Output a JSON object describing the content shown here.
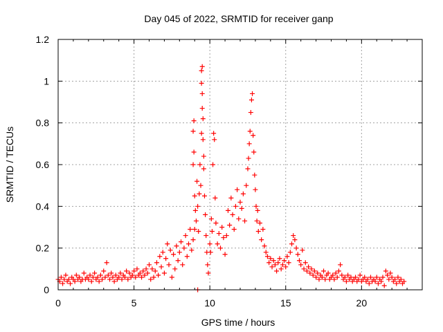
{
  "chart_data": {
    "type": "scatter",
    "title": "Day 045 of 2022, SRMTID for receiver ganp",
    "xlabel": "GPS time / hours",
    "ylabel": "SRMTID / TECUs",
    "xlim": [
      0,
      24
    ],
    "ylim": [
      0,
      1.2
    ],
    "x_ticks": [
      0,
      5,
      10,
      15,
      20
    ],
    "x_tick_labels": [
      "0",
      "5",
      "10",
      "15",
      "20"
    ],
    "y_ticks": [
      0,
      0.2,
      0.4,
      0.6,
      0.8,
      1.0,
      1.2
    ],
    "y_tick_labels": [
      "0",
      "0.2",
      "0.4",
      "0.6",
      "0.8",
      "1",
      "1.2"
    ],
    "grid": true,
    "marker": "+",
    "color": "#ff0000",
    "series": [
      {
        "name": "SRMTID",
        "points": [
          [
            0.0,
            0.05
          ],
          [
            0.1,
            0.04
          ],
          [
            0.2,
            0.06
          ],
          [
            0.3,
            0.03
          ],
          [
            0.4,
            0.05
          ],
          [
            0.5,
            0.07
          ],
          [
            0.6,
            0.04
          ],
          [
            0.7,
            0.05
          ],
          [
            0.8,
            0.03
          ],
          [
            0.9,
            0.06
          ],
          [
            1.0,
            0.05
          ],
          [
            1.1,
            0.04
          ],
          [
            1.2,
            0.07
          ],
          [
            1.3,
            0.05
          ],
          [
            1.4,
            0.06
          ],
          [
            1.5,
            0.04
          ],
          [
            1.6,
            0.05
          ],
          [
            1.7,
            0.08
          ],
          [
            1.8,
            0.05
          ],
          [
            1.9,
            0.06
          ],
          [
            2.0,
            0.05
          ],
          [
            2.1,
            0.07
          ],
          [
            2.2,
            0.04
          ],
          [
            2.3,
            0.06
          ],
          [
            2.4,
            0.08
          ],
          [
            2.5,
            0.05
          ],
          [
            2.6,
            0.06
          ],
          [
            2.7,
            0.04
          ],
          [
            2.8,
            0.07
          ],
          [
            2.9,
            0.05
          ],
          [
            3.0,
            0.09
          ],
          [
            3.1,
            0.06
          ],
          [
            3.2,
            0.13
          ],
          [
            3.3,
            0.07
          ],
          [
            3.4,
            0.05
          ],
          [
            3.5,
            0.08
          ],
          [
            3.6,
            0.06
          ],
          [
            3.7,
            0.04
          ],
          [
            3.8,
            0.07
          ],
          [
            3.9,
            0.05
          ],
          [
            4.0,
            0.06
          ],
          [
            4.1,
            0.08
          ],
          [
            4.2,
            0.05
          ],
          [
            4.3,
            0.07
          ],
          [
            4.4,
            0.06
          ],
          [
            4.5,
            0.09
          ],
          [
            4.6,
            0.05
          ],
          [
            4.7,
            0.08
          ],
          [
            4.8,
            0.06
          ],
          [
            4.9,
            0.07
          ],
          [
            5.0,
            0.09
          ],
          [
            5.1,
            0.06
          ],
          [
            5.2,
            0.1
          ],
          [
            5.3,
            0.07
          ],
          [
            5.4,
            0.08
          ],
          [
            5.5,
            0.06
          ],
          [
            5.6,
            0.09
          ],
          [
            5.7,
            0.07
          ],
          [
            5.8,
            0.1
          ],
          [
            5.9,
            0.08
          ],
          [
            6.0,
            0.12
          ],
          [
            6.1,
            0.05
          ],
          [
            6.2,
            0.1
          ],
          [
            6.3,
            0.06
          ],
          [
            6.4,
            0.09
          ],
          [
            6.5,
            0.13
          ],
          [
            6.6,
            0.07
          ],
          [
            6.7,
            0.16
          ],
          [
            6.8,
            0.11
          ],
          [
            6.9,
            0.18
          ],
          [
            7.0,
            0.08
          ],
          [
            7.1,
            0.15
          ],
          [
            7.2,
            0.22
          ],
          [
            7.3,
            0.12
          ],
          [
            7.4,
            0.19
          ],
          [
            7.5,
            0.06
          ],
          [
            7.6,
            0.17
          ],
          [
            7.7,
            0.1
          ],
          [
            7.8,
            0.21
          ],
          [
            7.9,
            0.14
          ],
          [
            8.0,
            0.18
          ],
          [
            8.1,
            0.23
          ],
          [
            8.2,
            0.12
          ],
          [
            8.3,
            0.2
          ],
          [
            8.4,
            0.26
          ],
          [
            8.5,
            0.16
          ],
          [
            8.6,
            0.22
          ],
          [
            8.7,
            0.29
          ],
          [
            8.8,
            0.19
          ],
          [
            8.9,
            0.24
          ],
          [
            8.9,
            0.6
          ],
          [
            8.95,
            0.66
          ],
          [
            8.9,
            0.76
          ],
          [
            8.95,
            0.81
          ],
          [
            9.0,
            0.29
          ],
          [
            9.0,
            0.45
          ],
          [
            9.05,
            0.38
          ],
          [
            9.1,
            0.33
          ],
          [
            9.15,
            0.52
          ],
          [
            9.2,
            0.4
          ],
          [
            9.25,
            0.28
          ],
          [
            9.3,
            0.46
          ],
          [
            9.35,
            0.6
          ],
          [
            9.4,
            0.5
          ],
          [
            9.45,
            0.75
          ],
          [
            9.5,
            0.87
          ],
          [
            9.5,
            1.07
          ],
          [
            9.45,
            1.05
          ],
          [
            9.45,
            0.99
          ],
          [
            9.5,
            0.94
          ],
          [
            9.55,
            0.82
          ],
          [
            9.55,
            0.72
          ],
          [
            9.6,
            0.64
          ],
          [
            9.6,
            0.58
          ],
          [
            9.65,
            0.45
          ],
          [
            9.7,
            0.36
          ],
          [
            9.75,
            0.26
          ],
          [
            9.8,
            0.18
          ],
          [
            9.85,
            0.12
          ],
          [
            9.9,
            0.08
          ],
          [
            9.2,
            0.0
          ],
          [
            10.0,
            0.22
          ],
          [
            10.05,
            0.18
          ],
          [
            10.1,
            0.34
          ],
          [
            10.15,
            0.28
          ],
          [
            10.2,
            0.6
          ],
          [
            10.25,
            0.75
          ],
          [
            10.3,
            0.72
          ],
          [
            10.35,
            0.44
          ],
          [
            10.4,
            0.32
          ],
          [
            10.5,
            0.22
          ],
          [
            10.6,
            0.27
          ],
          [
            10.7,
            0.2
          ],
          [
            10.8,
            0.3
          ],
          [
            10.9,
            0.25
          ],
          [
            11.0,
            0.17
          ],
          [
            11.1,
            0.26
          ],
          [
            11.2,
            0.38
          ],
          [
            11.3,
            0.31
          ],
          [
            11.4,
            0.44
          ],
          [
            11.5,
            0.36
          ],
          [
            11.6,
            0.29
          ],
          [
            11.7,
            0.4
          ],
          [
            11.8,
            0.48
          ],
          [
            11.9,
            0.34
          ],
          [
            12.0,
            0.42
          ],
          [
            12.1,
            0.39
          ],
          [
            12.2,
            0.46
          ],
          [
            12.3,
            0.33
          ],
          [
            12.4,
            0.5
          ],
          [
            12.5,
            0.58
          ],
          [
            12.55,
            0.63
          ],
          [
            12.6,
            0.7
          ],
          [
            12.65,
            0.76
          ],
          [
            12.7,
            0.85
          ],
          [
            12.75,
            0.91
          ],
          [
            12.8,
            0.94
          ],
          [
            12.85,
            0.74
          ],
          [
            12.9,
            0.66
          ],
          [
            12.95,
            0.55
          ],
          [
            13.0,
            0.48
          ],
          [
            13.05,
            0.4
          ],
          [
            13.1,
            0.33
          ],
          [
            13.15,
            0.38
          ],
          [
            13.2,
            0.28
          ],
          [
            13.3,
            0.32
          ],
          [
            13.4,
            0.24
          ],
          [
            13.5,
            0.29
          ],
          [
            13.6,
            0.21
          ],
          [
            13.7,
            0.18
          ],
          [
            13.8,
            0.16
          ],
          [
            13.9,
            0.13
          ],
          [
            14.0,
            0.15
          ],
          [
            14.1,
            0.11
          ],
          [
            14.2,
            0.14
          ],
          [
            14.3,
            0.12
          ],
          [
            14.4,
            0.09
          ],
          [
            14.5,
            0.13
          ],
          [
            14.6,
            0.15
          ],
          [
            14.7,
            0.1
          ],
          [
            14.8,
            0.12
          ],
          [
            14.9,
            0.14
          ],
          [
            15.0,
            0.11
          ],
          [
            15.1,
            0.16
          ],
          [
            15.2,
            0.13
          ],
          [
            15.3,
            0.18
          ],
          [
            15.4,
            0.22
          ],
          [
            15.5,
            0.26
          ],
          [
            15.6,
            0.24
          ],
          [
            15.7,
            0.2
          ],
          [
            15.8,
            0.17
          ],
          [
            15.9,
            0.14
          ],
          [
            16.0,
            0.12
          ],
          [
            16.1,
            0.19
          ],
          [
            16.2,
            0.1
          ],
          [
            16.3,
            0.13
          ],
          [
            16.4,
            0.09
          ],
          [
            16.5,
            0.11
          ],
          [
            16.6,
            0.08
          ],
          [
            16.7,
            0.1
          ],
          [
            16.8,
            0.07
          ],
          [
            16.9,
            0.09
          ],
          [
            17.0,
            0.06
          ],
          [
            17.1,
            0.08
          ],
          [
            17.2,
            0.05
          ],
          [
            17.3,
            0.07
          ],
          [
            17.4,
            0.06
          ],
          [
            17.5,
            0.09
          ],
          [
            17.6,
            0.05
          ],
          [
            17.7,
            0.07
          ],
          [
            17.8,
            0.08
          ],
          [
            17.9,
            0.05
          ],
          [
            18.0,
            0.06
          ],
          [
            18.1,
            0.07
          ],
          [
            18.2,
            0.05
          ],
          [
            18.3,
            0.08
          ],
          [
            18.4,
            0.06
          ],
          [
            18.5,
            0.09
          ],
          [
            18.6,
            0.12
          ],
          [
            18.7,
            0.07
          ],
          [
            18.8,
            0.05
          ],
          [
            18.9,
            0.06
          ],
          [
            19.0,
            0.04
          ],
          [
            19.1,
            0.07
          ],
          [
            19.2,
            0.05
          ],
          [
            19.3,
            0.06
          ],
          [
            19.4,
            0.04
          ],
          [
            19.5,
            0.05
          ],
          [
            19.6,
            0.06
          ],
          [
            19.7,
            0.04
          ],
          [
            19.8,
            0.05
          ],
          [
            19.9,
            0.07
          ],
          [
            20.0,
            0.04
          ],
          [
            20.1,
            0.05
          ],
          [
            20.2,
            0.06
          ],
          [
            20.3,
            0.04
          ],
          [
            20.4,
            0.05
          ],
          [
            20.5,
            0.03
          ],
          [
            20.6,
            0.06
          ],
          [
            20.7,
            0.04
          ],
          [
            20.8,
            0.05
          ],
          [
            20.9,
            0.04
          ],
          [
            21.0,
            0.06
          ],
          [
            21.1,
            0.03
          ],
          [
            21.2,
            0.05
          ],
          [
            21.3,
            0.04
          ],
          [
            21.4,
            0.06
          ],
          [
            21.5,
            0.02
          ],
          [
            21.6,
            0.09
          ],
          [
            21.7,
            0.07
          ],
          [
            21.8,
            0.05
          ],
          [
            21.9,
            0.08
          ],
          [
            22.0,
            0.06
          ],
          [
            22.1,
            0.04
          ],
          [
            22.2,
            0.05
          ],
          [
            22.3,
            0.03
          ],
          [
            22.4,
            0.06
          ],
          [
            22.5,
            0.04
          ],
          [
            22.6,
            0.05
          ],
          [
            22.7,
            0.03
          ],
          [
            22.8,
            0.04
          ]
        ]
      }
    ]
  }
}
